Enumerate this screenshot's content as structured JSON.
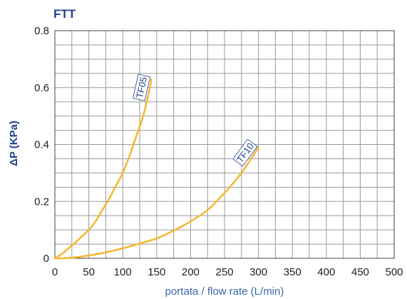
{
  "chart_data": {
    "type": "line",
    "title": "FTT",
    "xlabel": "portata / flow rate (L/min)",
    "ylabel": "ΔP (KPa)",
    "xlim": [
      0,
      500
    ],
    "ylim": [
      0,
      0.8
    ],
    "x_ticks": [
      "0",
      "50",
      "100",
      "150",
      "200",
      "250",
      "300",
      "350",
      "400",
      "450",
      "500"
    ],
    "y_ticks": [
      "0",
      "0.2",
      "0.4",
      "0.6",
      "0.8"
    ],
    "grid": true,
    "legend": "none",
    "series": [
      {
        "name": "TF05",
        "x": [
          0,
          10,
          20,
          30,
          40,
          50,
          60,
          70,
          80,
          90,
          100,
          110,
          120,
          130,
          140,
          142
        ],
        "y": [
          0,
          0.015,
          0.035,
          0.055,
          0.078,
          0.1,
          0.13,
          0.17,
          0.21,
          0.255,
          0.3,
          0.36,
          0.43,
          0.5,
          0.6,
          0.63
        ]
      },
      {
        "name": "TF10",
        "x": [
          0,
          25,
          50,
          75,
          100,
          125,
          150,
          175,
          200,
          225,
          250,
          275,
          300
        ],
        "y": [
          0,
          0.002,
          0.01,
          0.021,
          0.035,
          0.052,
          0.07,
          0.097,
          0.13,
          0.17,
          0.23,
          0.3,
          0.39
        ]
      }
    ],
    "colors": {
      "line": "#f5b730",
      "title": "#1f3f8f",
      "xlabel": "#3a68b0",
      "ylabel": "#1f3f8f",
      "grid": "#999999",
      "series_label": "#1f3f8f"
    }
  }
}
